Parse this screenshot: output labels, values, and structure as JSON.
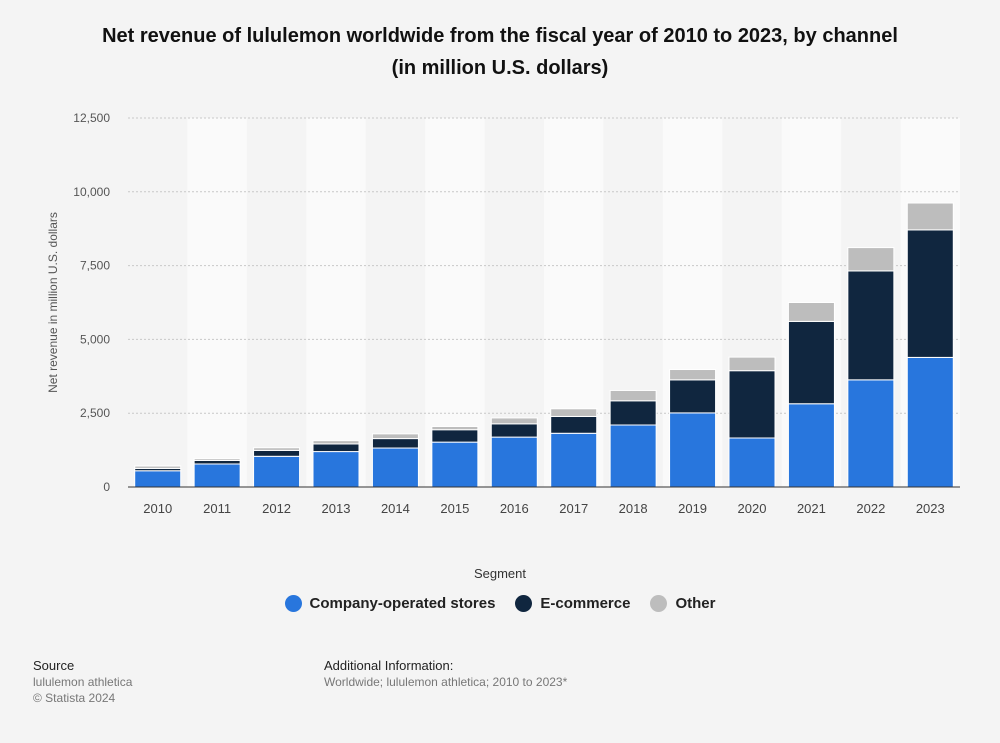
{
  "header": {
    "title_line1": "Net revenue of lululemon worldwide from the fiscal year of 2010 to 2023, by channel",
    "title_line2": "(in million U.S. dollars)"
  },
  "legend": {
    "heading": "Segment"
  },
  "footer": {
    "source_heading": "Source",
    "source_line1": "lululemon athletica",
    "source_line2": "© Statista 2024",
    "info_heading": "Additional Information:",
    "info_text": "Worldwide; lululemon athletica; 2010 to 2023*"
  },
  "chart_data": {
    "type": "bar",
    "stacked": true,
    "ylabel": "Net revenue in million U.S. dollars",
    "ylim": [
      0,
      12500
    ],
    "yticks": [
      0,
      2500,
      5000,
      7500,
      10000,
      12500
    ],
    "ytick_labels": [
      "0",
      "2,500",
      "5,000",
      "7,500",
      "10,000",
      "12,500"
    ],
    "grid": true,
    "legend_position": "bottom",
    "categories": [
      "2010",
      "2011",
      "2012",
      "2013",
      "2014",
      "2015",
      "2016",
      "2017",
      "2018",
      "2019",
      "2020",
      "2021",
      "2022",
      "2023"
    ],
    "series": [
      {
        "name": "Company-operated stores",
        "color": "#2876dd",
        "values": [
          550,
          780,
          1040,
          1200,
          1320,
          1520,
          1690,
          1820,
          2100,
          2510,
          1660,
          2820,
          3630,
          4390
        ]
      },
      {
        "name": "E-commerce",
        "color": "#10263f",
        "values": [
          80,
          120,
          200,
          260,
          320,
          420,
          450,
          570,
          820,
          1120,
          2280,
          2790,
          3690,
          4320
        ]
      },
      {
        "name": "Other",
        "color": "#bdbdbd",
        "values": [
          80,
          60,
          90,
          110,
          160,
          110,
          200,
          260,
          350,
          350,
          460,
          640,
          790,
          910
        ]
      }
    ]
  }
}
